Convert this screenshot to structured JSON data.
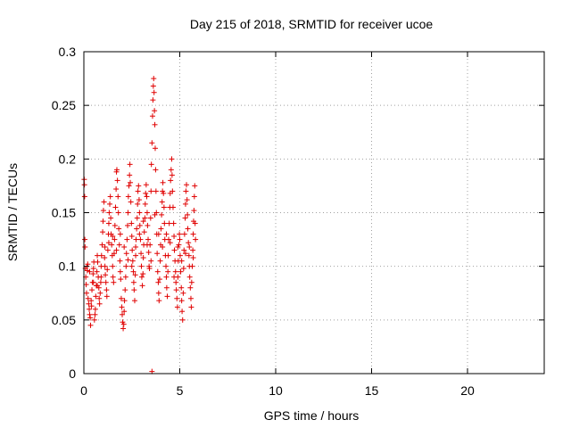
{
  "chart_data": {
    "type": "scatter",
    "title": "Day 215 of 2018, SRMTID for receiver ucoe",
    "xlabel": "GPS time / hours",
    "ylabel": "SRMTID / TECUs",
    "xlim": [
      0,
      24
    ],
    "ylim": [
      0,
      0.3
    ],
    "xticks": [
      0,
      5,
      10,
      15,
      20
    ],
    "xtick_labels": [
      "0",
      "5",
      "10",
      "15",
      "20"
    ],
    "yticks": [
      0,
      0.05,
      0.1,
      0.15,
      0.2,
      0.25,
      0.3
    ],
    "ytick_labels": [
      "0",
      "0.05",
      "0.1",
      "0.15",
      "0.2",
      "0.25",
      "0.3"
    ],
    "grid": true,
    "marker": "+",
    "series": [
      {
        "name": "SRMTID",
        "color": "#e00000",
        "points": [
          [
            0.02,
            0.181
          ],
          [
            0.03,
            0.176
          ],
          [
            0.04,
            0.165
          ],
          [
            0.05,
            0.125
          ],
          [
            0.06,
            0.118
          ],
          [
            0.08,
            0.098
          ],
          [
            0.1,
            0.09
          ],
          [
            0.12,
            0.083
          ],
          [
            0.14,
            0.075
          ],
          [
            0.16,
            0.1
          ],
          [
            0.18,
            0.096
          ],
          [
            0.2,
            0.102
          ],
          [
            0.22,
            0.07
          ],
          [
            0.25,
            0.065
          ],
          [
            0.28,
            0.06
          ],
          [
            0.3,
            0.055
          ],
          [
            0.33,
            0.052
          ],
          [
            0.35,
            0.045
          ],
          [
            0.38,
            0.068
          ],
          [
            0.4,
            0.063
          ],
          [
            0.42,
            0.078
          ],
          [
            0.45,
            0.085
          ],
          [
            0.48,
            0.093
          ],
          [
            0.5,
            0.098
          ],
          [
            0.52,
            0.104
          ],
          [
            0.55,
            0.05
          ],
          [
            0.58,
            0.055
          ],
          [
            0.6,
            0.06
          ],
          [
            0.62,
            0.072
          ],
          [
            0.65,
            0.082
          ],
          [
            0.68,
            0.095
          ],
          [
            0.7,
            0.11
          ],
          [
            0.72,
            0.104
          ],
          [
            0.75,
            0.09
          ],
          [
            0.78,
            0.08
          ],
          [
            0.8,
            0.07
          ],
          [
            0.82,
            0.065
          ],
          [
            0.85,
            0.075
          ],
          [
            0.88,
            0.085
          ],
          [
            0.9,
            0.1
          ],
          [
            0.92,
            0.11
          ],
          [
            0.95,
            0.12
          ],
          [
            0.98,
            0.132
          ],
          [
            1.0,
            0.142
          ],
          [
            1.02,
            0.152
          ],
          [
            1.05,
            0.16
          ],
          [
            1.08,
            0.108
          ],
          [
            1.1,
            0.1
          ],
          [
            1.12,
            0.092
          ],
          [
            1.15,
            0.085
          ],
          [
            1.18,
            0.078
          ],
          [
            1.2,
            0.072
          ],
          [
            1.22,
            0.097
          ],
          [
            1.25,
            0.115
          ],
          [
            1.28,
            0.13
          ],
          [
            1.3,
            0.14
          ],
          [
            1.32,
            0.15
          ],
          [
            1.35,
            0.158
          ],
          [
            1.38,
            0.165
          ],
          [
            1.4,
            0.145
          ],
          [
            1.42,
            0.13
          ],
          [
            1.45,
            0.12
          ],
          [
            1.48,
            0.11
          ],
          [
            1.5,
            0.1
          ],
          [
            1.52,
            0.09
          ],
          [
            1.55,
            0.085
          ],
          [
            1.58,
            0.112
          ],
          [
            1.6,
            0.125
          ],
          [
            1.62,
            0.138
          ],
          [
            1.65,
            0.155
          ],
          [
            1.68,
            0.172
          ],
          [
            1.7,
            0.188
          ],
          [
            1.72,
            0.19
          ],
          [
            1.75,
            0.18
          ],
          [
            1.78,
            0.165
          ],
          [
            1.8,
            0.15
          ],
          [
            1.82,
            0.135
          ],
          [
            1.85,
            0.12
          ],
          [
            1.88,
            0.105
          ],
          [
            1.9,
            0.095
          ],
          [
            1.92,
            0.088
          ],
          [
            1.95,
            0.07
          ],
          [
            1.98,
            0.062
          ],
          [
            2.0,
            0.055
          ],
          [
            2.02,
            0.048
          ],
          [
            2.05,
            0.042
          ],
          [
            2.08,
            0.046
          ],
          [
            2.1,
            0.058
          ],
          [
            2.12,
            0.068
          ],
          [
            2.15,
            0.078
          ],
          [
            2.18,
            0.09
          ],
          [
            2.2,
            0.1
          ],
          [
            2.22,
            0.112
          ],
          [
            2.25,
            0.125
          ],
          [
            2.28,
            0.138
          ],
          [
            2.3,
            0.15
          ],
          [
            2.32,
            0.165
          ],
          [
            2.35,
            0.175
          ],
          [
            2.38,
            0.185
          ],
          [
            2.4,
            0.195
          ],
          [
            2.42,
            0.178
          ],
          [
            2.45,
            0.16
          ],
          [
            2.48,
            0.14
          ],
          [
            2.5,
            0.128
          ],
          [
            2.52,
            0.115
          ],
          [
            2.55,
            0.105
          ],
          [
            2.58,
            0.095
          ],
          [
            2.6,
            0.085
          ],
          [
            2.62,
            0.078
          ],
          [
            2.65,
            0.068
          ],
          [
            2.68,
            0.092
          ],
          [
            2.7,
            0.11
          ],
          [
            2.72,
            0.125
          ],
          [
            2.75,
            0.135
          ],
          [
            2.78,
            0.145
          ],
          [
            2.8,
            0.158
          ],
          [
            2.82,
            0.17
          ],
          [
            2.85,
            0.175
          ],
          [
            2.88,
            0.162
          ],
          [
            2.9,
            0.15
          ],
          [
            2.92,
            0.138
          ],
          [
            2.95,
            0.125
          ],
          [
            2.98,
            0.112
          ],
          [
            3.0,
            0.1
          ],
          [
            3.02,
            0.09
          ],
          [
            3.05,
            0.082
          ],
          [
            3.08,
            0.093
          ],
          [
            3.1,
            0.108
          ],
          [
            3.12,
            0.12
          ],
          [
            3.15,
            0.132
          ],
          [
            3.18,
            0.145
          ],
          [
            3.2,
            0.158
          ],
          [
            3.22,
            0.168
          ],
          [
            3.25,
            0.176
          ],
          [
            3.28,
            0.165
          ],
          [
            3.3,
            0.15
          ],
          [
            3.32,
            0.138
          ],
          [
            3.35,
            0.125
          ],
          [
            3.38,
            0.113
          ],
          [
            3.4,
            0.1
          ],
          [
            3.42,
            0.098
          ],
          [
            3.45,
            0.12
          ],
          [
            3.48,
            0.145
          ],
          [
            3.5,
            0.17
          ],
          [
            3.52,
            0.195
          ],
          [
            3.55,
            0.215
          ],
          [
            3.58,
            0.24
          ],
          [
            3.6,
            0.255
          ],
          [
            3.62,
            0.268
          ],
          [
            3.64,
            0.275
          ],
          [
            3.66,
            0.262
          ],
          [
            3.68,
            0.245
          ],
          [
            3.7,
            0.232
          ],
          [
            3.72,
            0.21
          ],
          [
            3.74,
            0.19
          ],
          [
            3.76,
            0.17
          ],
          [
            3.78,
            0.15
          ],
          [
            3.8,
            0.13
          ],
          [
            3.82,
            0.112
          ],
          [
            3.85,
            0.095
          ],
          [
            3.88,
            0.085
          ],
          [
            3.9,
            0.075
          ],
          [
            3.92,
            0.068
          ],
          [
            3.95,
            0.088
          ],
          [
            3.98,
            0.105
          ],
          [
            4.0,
            0.12
          ],
          [
            4.02,
            0.135
          ],
          [
            4.05,
            0.148
          ],
          [
            4.08,
            0.16
          ],
          [
            4.1,
            0.17
          ],
          [
            4.12,
            0.178
          ],
          [
            4.15,
            0.168
          ],
          [
            4.18,
            0.155
          ],
          [
            4.2,
            0.14
          ],
          [
            4.22,
            0.125
          ],
          [
            4.25,
            0.11
          ],
          [
            4.28,
            0.1
          ],
          [
            4.3,
            0.09
          ],
          [
            4.32,
            0.08
          ],
          [
            4.35,
            0.072
          ],
          [
            4.38,
            0.095
          ],
          [
            4.4,
            0.11
          ],
          [
            4.42,
            0.125
          ],
          [
            4.45,
            0.14
          ],
          [
            4.48,
            0.155
          ],
          [
            4.5,
            0.168
          ],
          [
            4.52,
            0.18
          ],
          [
            4.55,
            0.19
          ],
          [
            4.58,
            0.2
          ],
          [
            4.6,
            0.185
          ],
          [
            4.62,
            0.17
          ],
          [
            4.65,
            0.155
          ],
          [
            4.68,
            0.14
          ],
          [
            4.7,
            0.128
          ],
          [
            4.72,
            0.115
          ],
          [
            4.75,
            0.105
          ],
          [
            4.78,
            0.095
          ],
          [
            4.8,
            0.085
          ],
          [
            4.82,
            0.078
          ],
          [
            4.85,
            0.07
          ],
          [
            4.88,
            0.062
          ],
          [
            4.9,
            0.09
          ],
          [
            4.92,
            0.105
          ],
          [
            4.95,
            0.12
          ],
          [
            4.98,
            0.13
          ],
          [
            5.0,
            0.125
          ],
          [
            5.02,
            0.11
          ],
          [
            5.05,
            0.095
          ],
          [
            5.08,
            0.08
          ],
          [
            5.1,
            0.068
          ],
          [
            5.12,
            0.058
          ],
          [
            5.15,
            0.05
          ],
          [
            5.18,
            0.075
          ],
          [
            5.2,
            0.098
          ],
          [
            5.22,
            0.115
          ],
          [
            5.25,
            0.13
          ],
          [
            5.28,
            0.145
          ],
          [
            5.3,
            0.158
          ],
          [
            5.32,
            0.17
          ],
          [
            5.35,
            0.176
          ],
          [
            5.38,
            0.162
          ],
          [
            5.4,
            0.148
          ],
          [
            5.42,
            0.135
          ],
          [
            5.45,
            0.122
          ],
          [
            5.48,
            0.11
          ],
          [
            5.5,
            0.1
          ],
          [
            5.52,
            0.09
          ],
          [
            5.55,
            0.08
          ],
          [
            5.58,
            0.07
          ],
          [
            5.6,
            0.062
          ],
          [
            5.62,
            0.085
          ],
          [
            5.65,
            0.1
          ],
          [
            5.68,
            0.115
          ],
          [
            5.7,
            0.13
          ],
          [
            5.72,
            0.142
          ],
          [
            5.74,
            0.152
          ],
          [
            5.76,
            0.165
          ],
          [
            5.78,
            0.175
          ],
          [
            5.8,
            0.14
          ],
          [
            5.82,
            0.125
          ],
          [
            0.3,
            0.095
          ],
          [
            0.5,
            0.085
          ],
          [
            0.7,
            0.082
          ],
          [
            0.9,
            0.09
          ],
          [
            1.1,
            0.118
          ],
          [
            1.3,
            0.122
          ],
          [
            1.5,
            0.128
          ],
          [
            1.7,
            0.115
          ],
          [
            1.9,
            0.13
          ],
          [
            2.1,
            0.118
          ],
          [
            2.3,
            0.106
          ],
          [
            2.5,
            0.1
          ],
          [
            2.7,
            0.118
          ],
          [
            2.9,
            0.13
          ],
          [
            3.1,
            0.142
          ],
          [
            3.3,
            0.12
          ],
          [
            3.5,
            0.105
          ],
          [
            3.7,
            0.148
          ],
          [
            3.9,
            0.13
          ],
          [
            4.1,
            0.118
          ],
          [
            4.3,
            0.13
          ],
          [
            4.5,
            0.122
          ],
          [
            4.7,
            0.09
          ],
          [
            4.9,
            0.118
          ],
          [
            5.1,
            0.105
          ],
          [
            5.3,
            0.112
          ],
          [
            5.5,
            0.118
          ],
          [
            5.7,
            0.108
          ],
          [
            3.55,
            0.002
          ]
        ]
      }
    ]
  }
}
